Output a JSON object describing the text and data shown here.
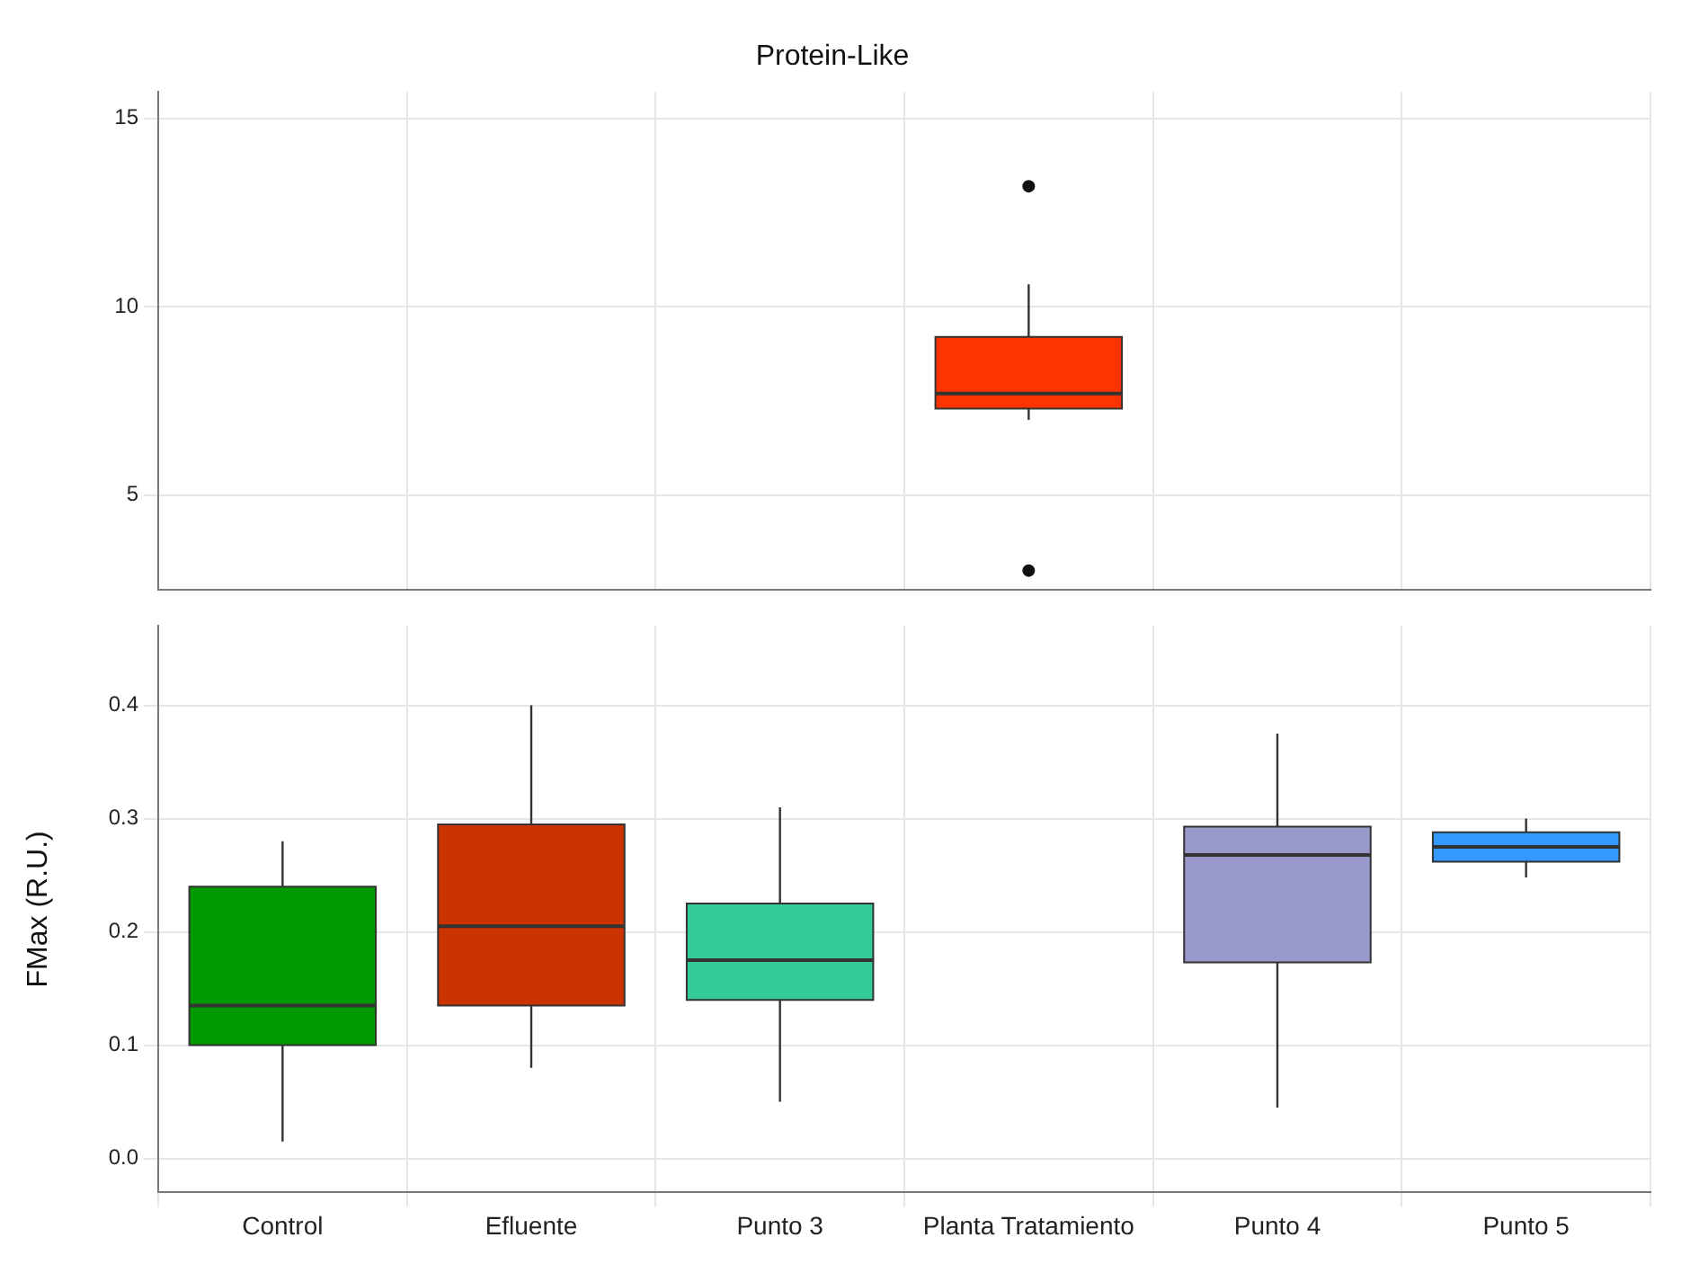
{
  "chart_data": [
    {
      "type": "box",
      "title": "Protein-Like",
      "categories": [
        null,
        null,
        null,
        null,
        null,
        null
      ],
      "colors": [
        "#009900",
        "#cc3300",
        "#33cc99",
        "#ff3300",
        "#9999cc",
        "#3399ff"
      ],
      "boxes": [
        null,
        null,
        null,
        {
          "low": 7.0,
          "q1": 7.3,
          "median": 7.7,
          "q3": 9.2,
          "high": 10.6,
          "outliers": [
            13.2,
            3.0
          ]
        },
        null,
        null
      ],
      "ylim": [
        2.5,
        15.7
      ],
      "yticks": [
        5,
        10,
        15
      ],
      "grid": true,
      "tick_labels": "y"
    },
    {
      "type": "box",
      "ylabel": "FMax (R.U.)",
      "categories": [
        "Control",
        "Efluente",
        "Punto 3",
        "Planta Tratamiento",
        "Punto 4",
        "Punto 5"
      ],
      "colors": [
        "#009900",
        "#cc3300",
        "#33cc99",
        "#ff3300",
        "#9999cc",
        "#3399ff"
      ],
      "boxes": [
        {
          "low": 0.015,
          "q1": 0.1,
          "median": 0.135,
          "q3": 0.24,
          "high": 0.28
        },
        {
          "low": 0.08,
          "q1": 0.135,
          "median": 0.205,
          "q3": 0.295,
          "high": 0.4
        },
        {
          "low": 0.05,
          "q1": 0.14,
          "median": 0.175,
          "q3": 0.225,
          "high": 0.31
        },
        null,
        {
          "low": 0.045,
          "q1": 0.173,
          "median": 0.268,
          "q3": 0.293,
          "high": 0.375
        },
        {
          "low": 0.248,
          "q1": 0.262,
          "median": 0.275,
          "q3": 0.288,
          "high": 0.3
        }
      ],
      "ylim": [
        -0.03,
        0.47
      ],
      "yticks": [
        {
          "value": 0,
          "label": "0.0"
        },
        0.1,
        0.2,
        0.3,
        0.4
      ],
      "grid": true
    }
  ]
}
